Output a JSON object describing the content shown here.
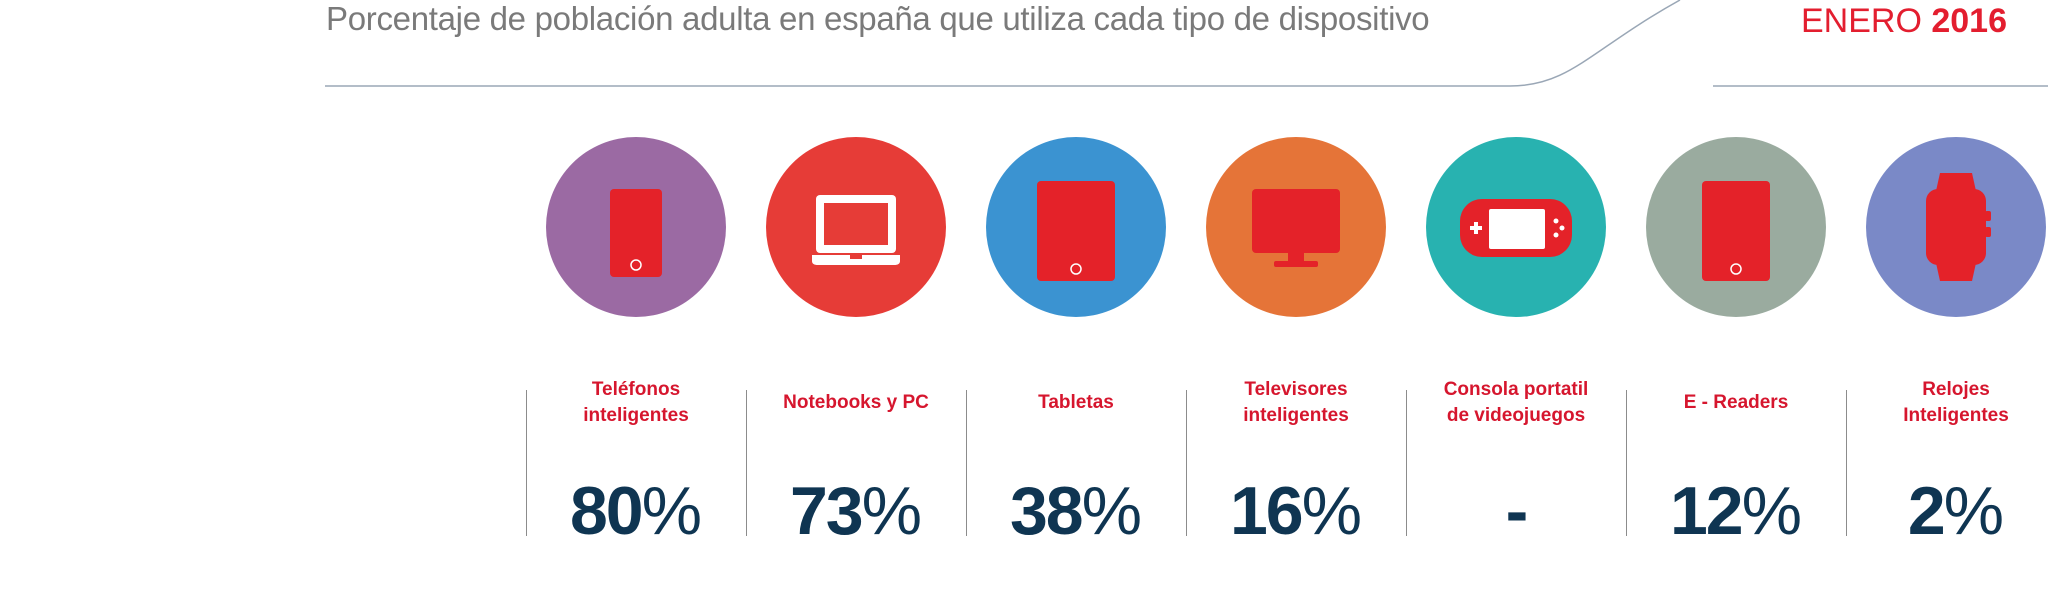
{
  "header": {
    "subtitle": "Porcentaje de población adulta en españa que utiliza cada tipo de dispositivo",
    "date_month": "ENERO",
    "date_year": "2016"
  },
  "colors": {
    "accent_red": "#e31e2f",
    "label_red": "#d6162e",
    "value_navy": "#0f3552",
    "line_gray": "#9aa7b6"
  },
  "chart_data": {
    "type": "table",
    "title": "",
    "subtitle": "Porcentaje de población adulta en españa que utiliza cada tipo de dispositivo",
    "date": "ENERO 2016",
    "categories": [
      "Teléfonos inteligentes",
      "Notebooks y PC",
      "Tabletas",
      "Televisores inteligentes",
      "Consola portatil de videojuegos",
      "E - Readers",
      "Relojes Inteligentes"
    ],
    "values": [
      80,
      73,
      38,
      16,
      null,
      12,
      2
    ],
    "unit": "%"
  },
  "devices": [
    {
      "label_lines": [
        "Teléfonos",
        "inteligentes"
      ],
      "value": "80",
      "unit": "%",
      "icon": "smartphone-icon",
      "circle_color": "#9b6aa3"
    },
    {
      "label_lines": [
        "Notebooks y PC"
      ],
      "value": "73",
      "unit": "%",
      "icon": "laptop-icon",
      "circle_color": "#e63c37"
    },
    {
      "label_lines": [
        "Tabletas"
      ],
      "value": "38",
      "unit": "%",
      "icon": "tablet-icon",
      "circle_color": "#3b93d1"
    },
    {
      "label_lines": [
        "Televisores",
        "inteligentes"
      ],
      "value": "16",
      "unit": "%",
      "icon": "television-icon",
      "circle_color": "#e57438"
    },
    {
      "label_lines": [
        "Consola portatil",
        "de videojuegos"
      ],
      "value": "-",
      "unit": "",
      "icon": "handheld-console-icon",
      "circle_color": "#28b2b0"
    },
    {
      "label_lines": [
        "E - Readers"
      ],
      "value": "12",
      "unit": "%",
      "icon": "ereader-icon",
      "circle_color": "#9aab9f"
    },
    {
      "label_lines": [
        "Relojes",
        "Inteligentes"
      ],
      "value": "2",
      "unit": "%",
      "icon": "smartwatch-icon",
      "circle_color": "#7a89c7"
    }
  ]
}
